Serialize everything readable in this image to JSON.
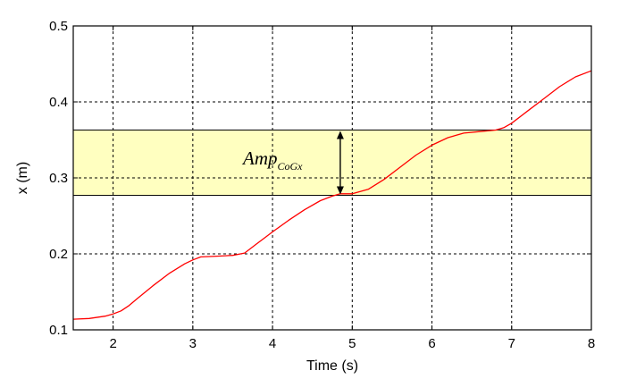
{
  "chart_data": {
    "type": "line",
    "title": "",
    "xlabel": "Time (s)",
    "ylabel": "x (m)",
    "xlim": [
      1.5,
      8
    ],
    "ylim": [
      0.1,
      0.5
    ],
    "x_ticks": [
      2,
      3,
      4,
      5,
      6,
      7,
      8
    ],
    "x_tick_labels": [
      "2",
      "3",
      "4",
      "5",
      "6",
      "7",
      "8"
    ],
    "y_ticks": [
      0.1,
      0.2,
      0.3,
      0.4,
      0.5
    ],
    "y_tick_labels": [
      "0.1",
      "0.2",
      "0.3",
      "0.4",
      "0.5"
    ],
    "grid": true,
    "grid_style": "dashed",
    "band": {
      "y_range": [
        0.277,
        0.363
      ],
      "color": "#ffffc0"
    },
    "annotation": {
      "main": "Amp",
      "sub": "CoGx",
      "arrow_x": 4.85,
      "arrow_y_range": [
        0.277,
        0.363
      ]
    },
    "series": [
      {
        "color": "#ff0000",
        "x": [
          1.5,
          1.7,
          1.9,
          2.0,
          2.1,
          2.2,
          2.3,
          2.5,
          2.7,
          2.9,
          3.0,
          3.1,
          3.3,
          3.5,
          3.65,
          3.8,
          3.9,
          4.0,
          4.2,
          4.4,
          4.6,
          4.75,
          4.85,
          5.0,
          5.2,
          5.4,
          5.6,
          5.8,
          6.0,
          6.2,
          6.4,
          6.6,
          6.8,
          6.9,
          7.0,
          7.2,
          7.4,
          7.6,
          7.8,
          8.0
        ],
        "y": [
          0.114,
          0.115,
          0.118,
          0.121,
          0.125,
          0.132,
          0.141,
          0.158,
          0.174,
          0.187,
          0.192,
          0.196,
          0.197,
          0.198,
          0.201,
          0.213,
          0.221,
          0.229,
          0.244,
          0.258,
          0.27,
          0.276,
          0.279,
          0.279,
          0.285,
          0.298,
          0.314,
          0.33,
          0.343,
          0.353,
          0.359,
          0.361,
          0.363,
          0.366,
          0.372,
          0.388,
          0.404,
          0.42,
          0.433,
          0.441
        ]
      }
    ]
  }
}
